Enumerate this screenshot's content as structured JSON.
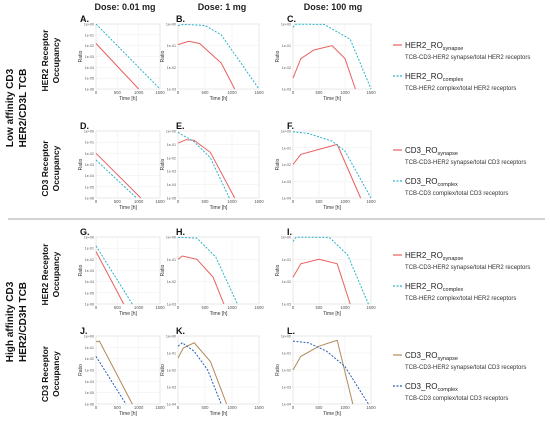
{
  "figure": {
    "dose_headers": [
      "Dose: 0.01 mg",
      "Dose: 1 mg",
      "Dose: 100 mg"
    ],
    "groups": [
      {
        "label_lines": [
          "Low affinity CD3",
          "HER2/CD3L TCB"
        ]
      },
      {
        "label_lines": [
          "High affinity CD3",
          "HER2/CD3H TCB"
        ]
      }
    ],
    "row_labels": [
      [
        "HER2 Receptor",
        "Occupancy"
      ],
      [
        "CD3  Receptor",
        "Occupancy"
      ],
      [
        "HER2 Receptor",
        "Occupancy"
      ],
      [
        "CD3  Receptor",
        "Occupancy"
      ]
    ],
    "colors": {
      "synapse": "#e8605e",
      "complex": "#2bb3c9",
      "synapse_high": "#b08a5a",
      "complex_high": "#2a5fb3"
    },
    "legends": [
      {
        "entries": [
          {
            "main": "HER2_RO",
            "sub": "synapse",
            "desc": "TCB-CD3-HER2 synapse/total HER2 receptors",
            "style": "solid"
          },
          {
            "main": "HER2_RO",
            "sub": "complex",
            "desc": "TCB-HER2 complex/total HER2 receptors",
            "style": "dashed"
          }
        ]
      },
      {
        "entries": [
          {
            "main": "CD3_RO",
            "sub": "synapse",
            "desc": "TCB-CD3-HER2 synapse/total CD3 receptors",
            "style": "solid"
          },
          {
            "main": "CD3_RO",
            "sub": "complex",
            "desc": "TCB-CD3 complex/total CD3 receptors",
            "style": "dashed"
          }
        ]
      },
      {
        "entries": [
          {
            "main": "HER2_RO",
            "sub": "synapse",
            "desc": "TCB-CD3-HER2 synapse/total HER2 receptors",
            "style": "solid"
          },
          {
            "main": "HER2_RO",
            "sub": "complex",
            "desc": "TCB-HER2 complex/total HER2 receptors",
            "style": "dashed"
          }
        ]
      },
      {
        "entries": [
          {
            "main": "CD3_RO",
            "sub": "synapse",
            "desc": "TCB-CD3-HER2 synapse/total CD3 receptors",
            "style": "solid"
          },
          {
            "main": "CD3_RO",
            "sub": "complex",
            "desc": "TCB-CD3 complex/total CD3 receptors",
            "style": "dashed"
          }
        ]
      }
    ]
  },
  "chart_data": [
    {
      "panel": "A.",
      "type": "line",
      "ylabel": "Ratio",
      "xlabel": "Time [h]",
      "xlim": [
        0,
        1500
      ],
      "ylog": true,
      "ylim_exp": [
        -6,
        0
      ],
      "yticks": [
        "1e+00",
        "1e-01",
        "1e-02",
        "1e-03",
        "1e-04",
        "1e-05",
        "1e-06"
      ],
      "xticks": [
        0,
        500,
        1000,
        1500
      ],
      "series": [
        {
          "name": "synapse",
          "style": "solid",
          "x": [
            0,
            1000
          ],
          "y": [
            -1.8,
            -6
          ]
        },
        {
          "name": "complex",
          "style": "dashed",
          "x": [
            0,
            1500
          ],
          "y": [
            0,
            -6
          ]
        }
      ]
    },
    {
      "panel": "B.",
      "type": "line",
      "ylabel": "Ratio",
      "xlabel": "Time [h]",
      "xlim": [
        0,
        1500
      ],
      "ylog": true,
      "ylim_exp": [
        -3,
        0
      ],
      "yticks": [
        "1e+00",
        "1e-01",
        "1e-02",
        "1e-03"
      ],
      "xticks": [
        0,
        500,
        1000,
        1500
      ],
      "series": [
        {
          "name": "synapse",
          "style": "solid",
          "x": [
            0,
            200,
            400,
            800,
            1050
          ],
          "y": [
            -0.95,
            -0.8,
            -0.9,
            -1.8,
            -3
          ]
        },
        {
          "name": "complex",
          "style": "dashed",
          "x": [
            0,
            100,
            500,
            800,
            1500
          ],
          "y": [
            -0.08,
            -0.02,
            -0.07,
            -0.5,
            -3
          ]
        }
      ]
    },
    {
      "panel": "C.",
      "type": "line",
      "ylabel": "Ratio",
      "xlabel": "Time [h]",
      "xlim": [
        0,
        1500
      ],
      "ylog": true,
      "ylim_exp": [
        -3,
        0
      ],
      "yticks": [
        "1e+00",
        "1e-01",
        "1e-02",
        "1e-03"
      ],
      "xticks": [
        0,
        500,
        1000,
        1500
      ],
      "series": [
        {
          "name": "synapse",
          "style": "solid",
          "x": [
            0,
            150,
            400,
            750,
            1000,
            1200
          ],
          "y": [
            -2.5,
            -1.6,
            -1.2,
            -1.0,
            -1.6,
            -3
          ]
        },
        {
          "name": "complex",
          "style": "dashed",
          "x": [
            0,
            50,
            600,
            1100,
            1500
          ],
          "y": [
            -0.15,
            -0.01,
            -0.02,
            -0.7,
            -3
          ]
        }
      ]
    },
    {
      "panel": "D.",
      "type": "line",
      "ylabel": "Ratio",
      "xlabel": "Time [h]",
      "xlim": [
        0,
        1500
      ],
      "ylog": true,
      "ylim_exp": [
        -6,
        0
      ],
      "yticks": [
        "1e+00",
        "1e-01",
        "1e-02",
        "1e-03",
        "1e-04",
        "1e-05",
        "1e-06"
      ],
      "xticks": [
        0,
        500,
        1000,
        1500
      ],
      "series": [
        {
          "name": "synapse",
          "style": "solid",
          "x": [
            0,
            1050
          ],
          "y": [
            -2.0,
            -6
          ]
        },
        {
          "name": "complex",
          "style": "dashed",
          "x": [
            0,
            950
          ],
          "y": [
            -2.6,
            -6
          ]
        }
      ]
    },
    {
      "panel": "E.",
      "type": "line",
      "ylabel": "Ratio",
      "xlabel": "Time [h]",
      "xlim": [
        0,
        1500
      ],
      "ylog": true,
      "ylim_exp": [
        -5,
        0
      ],
      "yticks": [
        "1e+00",
        "1e-01",
        "1e-02",
        "1e-03",
        "1e-04",
        "1e-05"
      ],
      "xticks": [
        0,
        500,
        1000,
        1500
      ],
      "series": [
        {
          "name": "synapse",
          "style": "solid",
          "x": [
            0,
            150,
            300,
            600,
            1050
          ],
          "y": [
            -0.9,
            -0.65,
            -0.7,
            -1.6,
            -5
          ]
        },
        {
          "name": "complex",
          "style": "dashed",
          "x": [
            0,
            60,
            300,
            600,
            950
          ],
          "y": [
            -0.1,
            -0.25,
            -0.8,
            -2.0,
            -5
          ]
        }
      ]
    },
    {
      "panel": "F.",
      "type": "line",
      "ylabel": "Ratio",
      "xlabel": "Time [h]",
      "xlim": [
        0,
        1500
      ],
      "ylog": true,
      "ylim_exp": [
        -4,
        0
      ],
      "yticks": [
        "1e+00",
        "1e-01",
        "1e-02",
        "1e-03",
        "1e-04"
      ],
      "xticks": [
        0,
        500,
        1000,
        1500
      ],
      "series": [
        {
          "name": "synapse",
          "style": "solid",
          "x": [
            0,
            150,
            500,
            850,
            1300
          ],
          "y": [
            -2.0,
            -1.4,
            -1.1,
            -0.8,
            -4
          ]
        },
        {
          "name": "complex",
          "style": "dashed",
          "x": [
            0,
            300,
            750,
            1000,
            1500
          ],
          "y": [
            -0.05,
            -0.15,
            -0.6,
            -1.2,
            -4
          ]
        }
      ]
    },
    {
      "panel": "G.",
      "type": "line",
      "ylabel": "Ratio",
      "xlabel": "Time [h]",
      "xlim": [
        0,
        1500
      ],
      "ylog": true,
      "ylim_exp": [
        -6,
        0
      ],
      "yticks": [
        "1e+00",
        "1e-01",
        "1e-02",
        "1e-03",
        "1e-04",
        "1e-05",
        "1e-06"
      ],
      "xticks": [
        0,
        500,
        1000,
        1500
      ],
      "series": [
        {
          "name": "synapse",
          "style": "solid",
          "x": [
            0,
            650
          ],
          "y": [
            -1.3,
            -6
          ]
        },
        {
          "name": "complex",
          "style": "dashed",
          "x": [
            0,
            850
          ],
          "y": [
            -0.8,
            -6
          ]
        }
      ]
    },
    {
      "panel": "H.",
      "type": "line",
      "ylabel": "Ratio",
      "xlabel": "Time [h]",
      "xlim": [
        0,
        1500
      ],
      "ylog": true,
      "ylim_exp": [
        -3,
        0
      ],
      "yticks": [
        "1e+00",
        "1e-01",
        "1e-02",
        "1e-03"
      ],
      "xticks": [
        0,
        500,
        1000,
        1500
      ],
      "series": [
        {
          "name": "synapse",
          "style": "solid",
          "x": [
            0,
            80,
            350,
            650,
            850
          ],
          "y": [
            -1.0,
            -0.85,
            -1.0,
            -1.8,
            -3
          ]
        },
        {
          "name": "complex",
          "style": "dashed",
          "x": [
            0,
            350,
            700,
            1100
          ],
          "y": [
            -0.02,
            -0.05,
            -0.9,
            -3
          ]
        }
      ]
    },
    {
      "panel": "I.",
      "type": "line",
      "ylabel": "Ratio",
      "xlabel": "Time [h]",
      "xlim": [
        0,
        1500
      ],
      "ylog": true,
      "ylim_exp": [
        -3,
        0
      ],
      "yticks": [
        "1e+00",
        "1e-01",
        "1e-02",
        "1e-03"
      ],
      "xticks": [
        0,
        500,
        1000,
        1500
      ],
      "series": [
        {
          "name": "synapse",
          "style": "solid",
          "x": [
            0,
            150,
            500,
            850,
            1100
          ],
          "y": [
            -1.8,
            -1.2,
            -1.0,
            -1.2,
            -3
          ]
        },
        {
          "name": "complex",
          "style": "dashed",
          "x": [
            0,
            60,
            700,
            1050,
            1450
          ],
          "y": [
            -0.2,
            -0.01,
            -0.02,
            -0.8,
            -3
          ]
        }
      ]
    },
    {
      "panel": "J.",
      "type": "line",
      "ylabel": "Ratio",
      "xlabel": "Time [h]",
      "xlim": [
        0,
        1500
      ],
      "ylog": true,
      "ylim_exp": [
        -6,
        0
      ],
      "yticks": [
        "1e+00",
        "1e-01",
        "1e-02",
        "1e-03",
        "1e-04",
        "1e-05",
        "1e-06"
      ],
      "xticks": [
        0,
        500,
        1000,
        1500
      ],
      "series": [
        {
          "name": "synapse",
          "style": "solid",
          "x": [
            0,
            80,
            850
          ],
          "y": [
            -0.5,
            -0.45,
            -6
          ]
        },
        {
          "name": "complex",
          "style": "dashed",
          "x": [
            0,
            700
          ],
          "y": [
            -1.8,
            -6
          ]
        }
      ]
    },
    {
      "panel": "K.",
      "type": "line",
      "ylabel": "Ratio",
      "xlabel": "Time [h]",
      "xlim": [
        0,
        1500
      ],
      "ylog": true,
      "ylim_exp": [
        -4,
        0
      ],
      "yticks": [
        "1e+00",
        "1e-01",
        "1e-02",
        "1e-03",
        "1e-04"
      ],
      "xticks": [
        0,
        500,
        1000,
        1500
      ],
      "series": [
        {
          "name": "synapse",
          "style": "solid",
          "x": [
            0,
            100,
            300,
            600,
            900
          ],
          "y": [
            -1.3,
            -0.7,
            -0.4,
            -1.5,
            -4
          ]
        },
        {
          "name": "complex",
          "style": "dashed",
          "x": [
            0,
            80,
            300,
            550,
            800
          ],
          "y": [
            -0.6,
            -0.4,
            -0.9,
            -2.0,
            -4
          ]
        }
      ]
    },
    {
      "panel": "L.",
      "type": "line",
      "ylabel": "Ratio",
      "xlabel": "Time [h]",
      "xlim": [
        0,
        1500
      ],
      "ylog": true,
      "ylim_exp": [
        -4,
        0
      ],
      "yticks": [
        "1e+00",
        "1e-01",
        "1e-02",
        "1e-03",
        "1e-04"
      ],
      "xticks": [
        0,
        500,
        1000,
        1500
      ],
      "series": [
        {
          "name": "synapse",
          "style": "solid",
          "x": [
            0,
            150,
            500,
            850,
            1150
          ],
          "y": [
            -2.0,
            -1.2,
            -0.6,
            -0.25,
            -4
          ]
        },
        {
          "name": "complex",
          "style": "dashed",
          "x": [
            0,
            300,
            650,
            1000,
            1450
          ],
          "y": [
            -0.3,
            -0.4,
            -0.9,
            -1.8,
            -4
          ]
        }
      ]
    }
  ]
}
